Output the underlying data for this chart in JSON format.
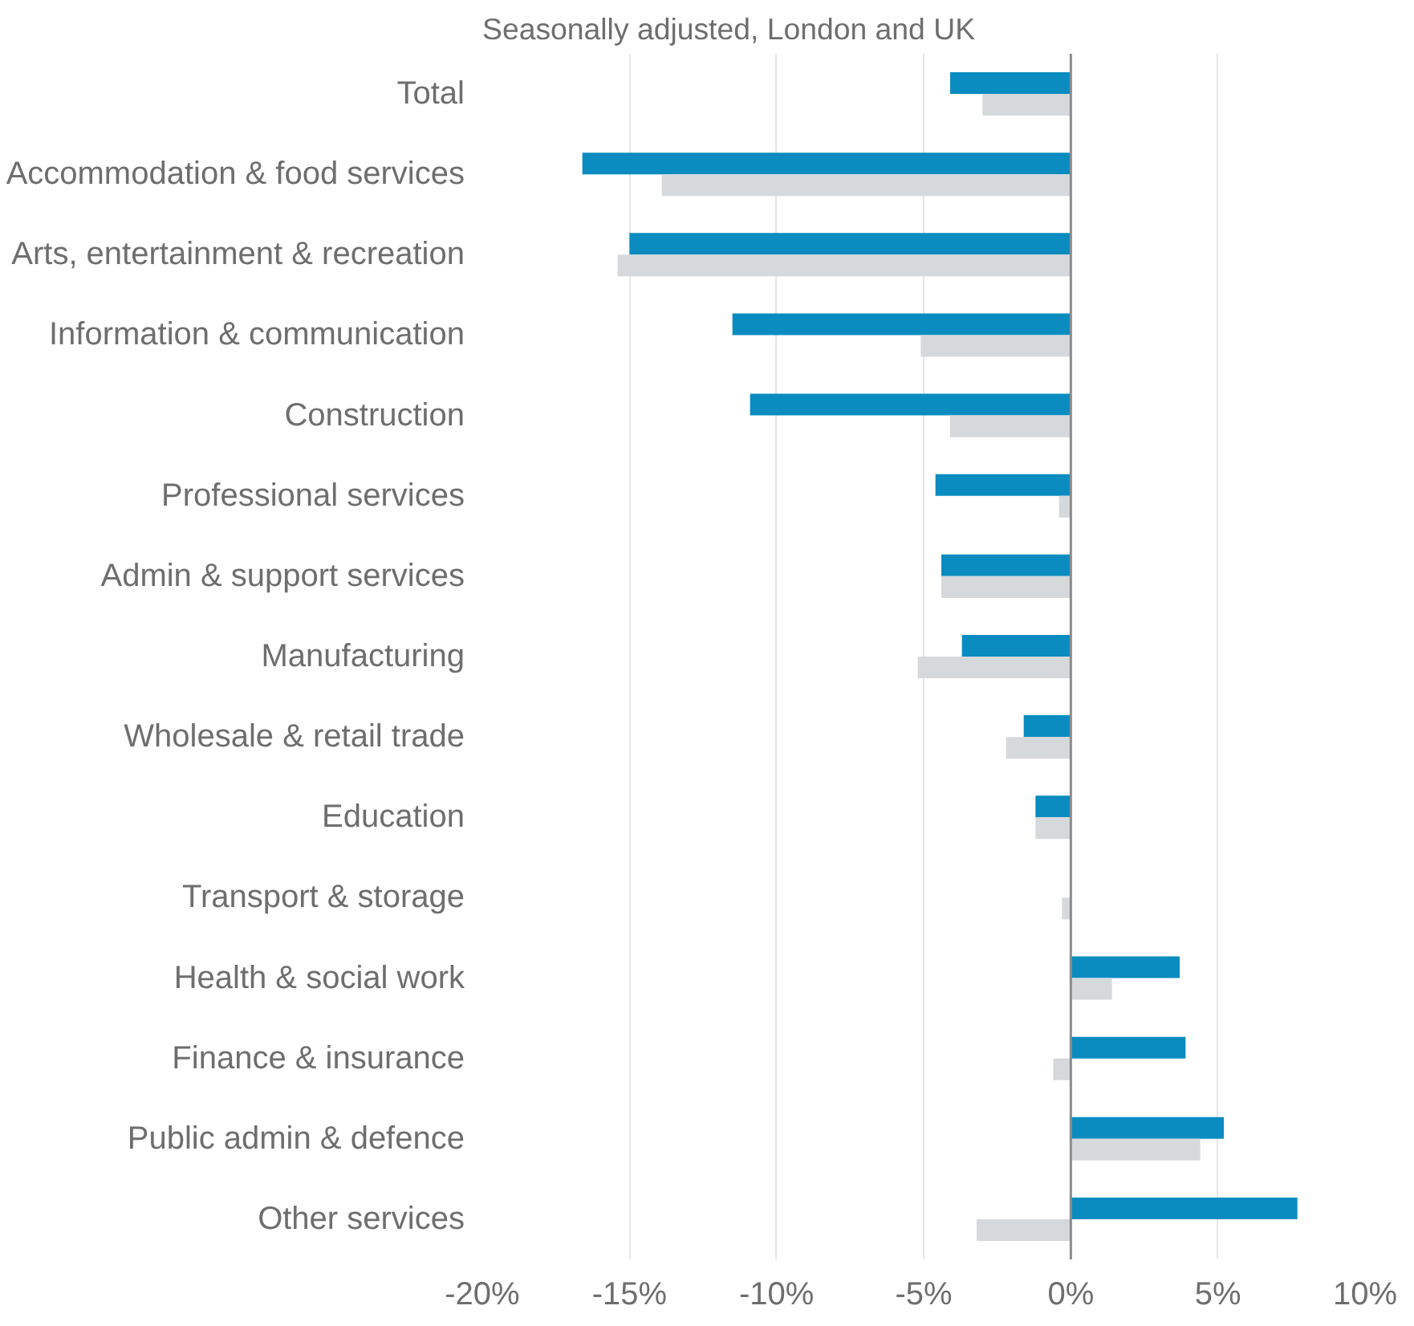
{
  "chart_data": {
    "type": "bar",
    "orientation": "horizontal",
    "subtitle": "Seasonally adjusted, London and UK",
    "categories": [
      "Total",
      "Accommodation & food services",
      "Arts, entertainment & recreation",
      "Information & communication",
      "Construction",
      "Professional services",
      "Admin & support services",
      "Manufacturing",
      "Wholesale & retail trade",
      "Education",
      "Transport & storage",
      "Health & social work",
      "Finance & insurance",
      "Public admin & defence",
      "Other services"
    ],
    "series": [
      {
        "color": "#0a8cc0",
        "values": [
          -4.1,
          -16.6,
          -15.0,
          -11.5,
          -10.9,
          -4.6,
          -4.4,
          -3.7,
          -1.6,
          -1.2,
          0,
          3.7,
          3.9,
          5.2,
          7.7
        ]
      },
      {
        "color": "#d5d9dc",
        "values": [
          -3.0,
          -13.9,
          -15.4,
          -5.1,
          -4.1,
          -0.4,
          -4.4,
          -5.2,
          -2.2,
          -1.2,
          -0.3,
          1.4,
          -0.6,
          4.4,
          -3.2
        ]
      }
    ],
    "xlim": [
      -20,
      10
    ],
    "xticks": [
      {
        "value": -20,
        "label": "-20%"
      },
      {
        "value": -15,
        "label": "-15%"
      },
      {
        "value": -10,
        "label": "-10%"
      },
      {
        "value": -5,
        "label": "-5%"
      },
      {
        "value": 0,
        "label": "0%"
      },
      {
        "value": 5,
        "label": "5%"
      },
      {
        "value": 10,
        "label": "10%"
      }
    ],
    "grid": "x"
  }
}
